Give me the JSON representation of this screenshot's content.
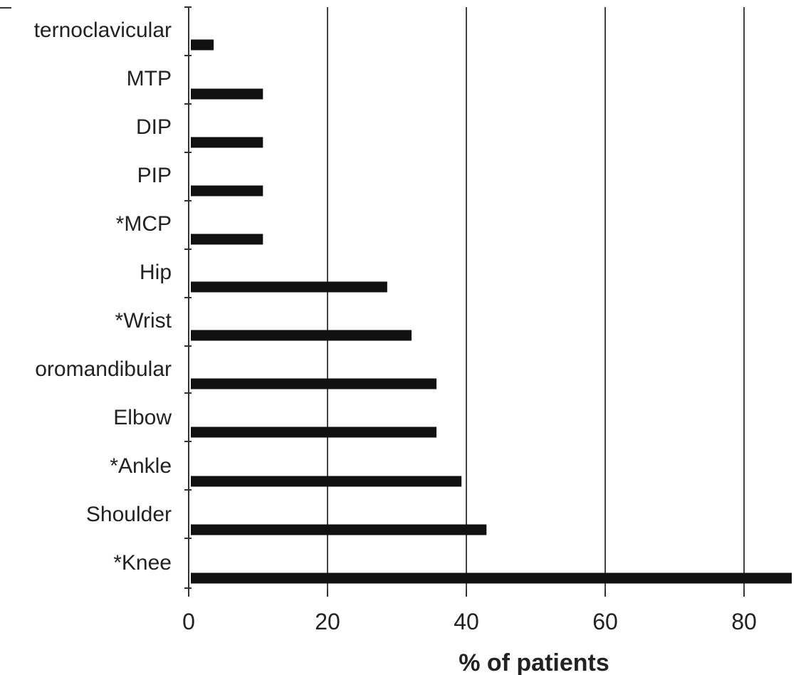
{
  "chart_data": {
    "type": "bar",
    "orientation": "horizontal",
    "categories": [
      "Sternoclavicular",
      "MTP",
      "DIP",
      "PIP",
      "*MCP",
      "Hip",
      "*Wrist",
      "Temporomandibular",
      "Elbow",
      "*Ankle",
      "Shoulder",
      "*Knee"
    ],
    "category_labels_visible": [
      "ternoclavicular",
      "MTP",
      "DIP",
      "PIP",
      "*MCP",
      "Hip",
      "*Wrist",
      "oromandibular",
      "Elbow",
      "*Ankle",
      "Shoulder",
      "*Knee"
    ],
    "values": [
      3.6,
      10.7,
      10.7,
      10.7,
      10.7,
      28.6,
      32.1,
      35.7,
      35.7,
      39.3,
      42.9,
      89.3
    ],
    "xlabel": "% of patients",
    "ylabel": "",
    "title": "",
    "xlim": [
      0,
      87
    ],
    "x_ticks": [
      0,
      20,
      40,
      60,
      80
    ],
    "x_tick_labels": [
      "0",
      "20",
      "40",
      "60",
      "80"
    ],
    "grid": "vertical lines at x ticks",
    "legend": "none",
    "bar_color": "#111111",
    "grid_color": "#444444"
  }
}
